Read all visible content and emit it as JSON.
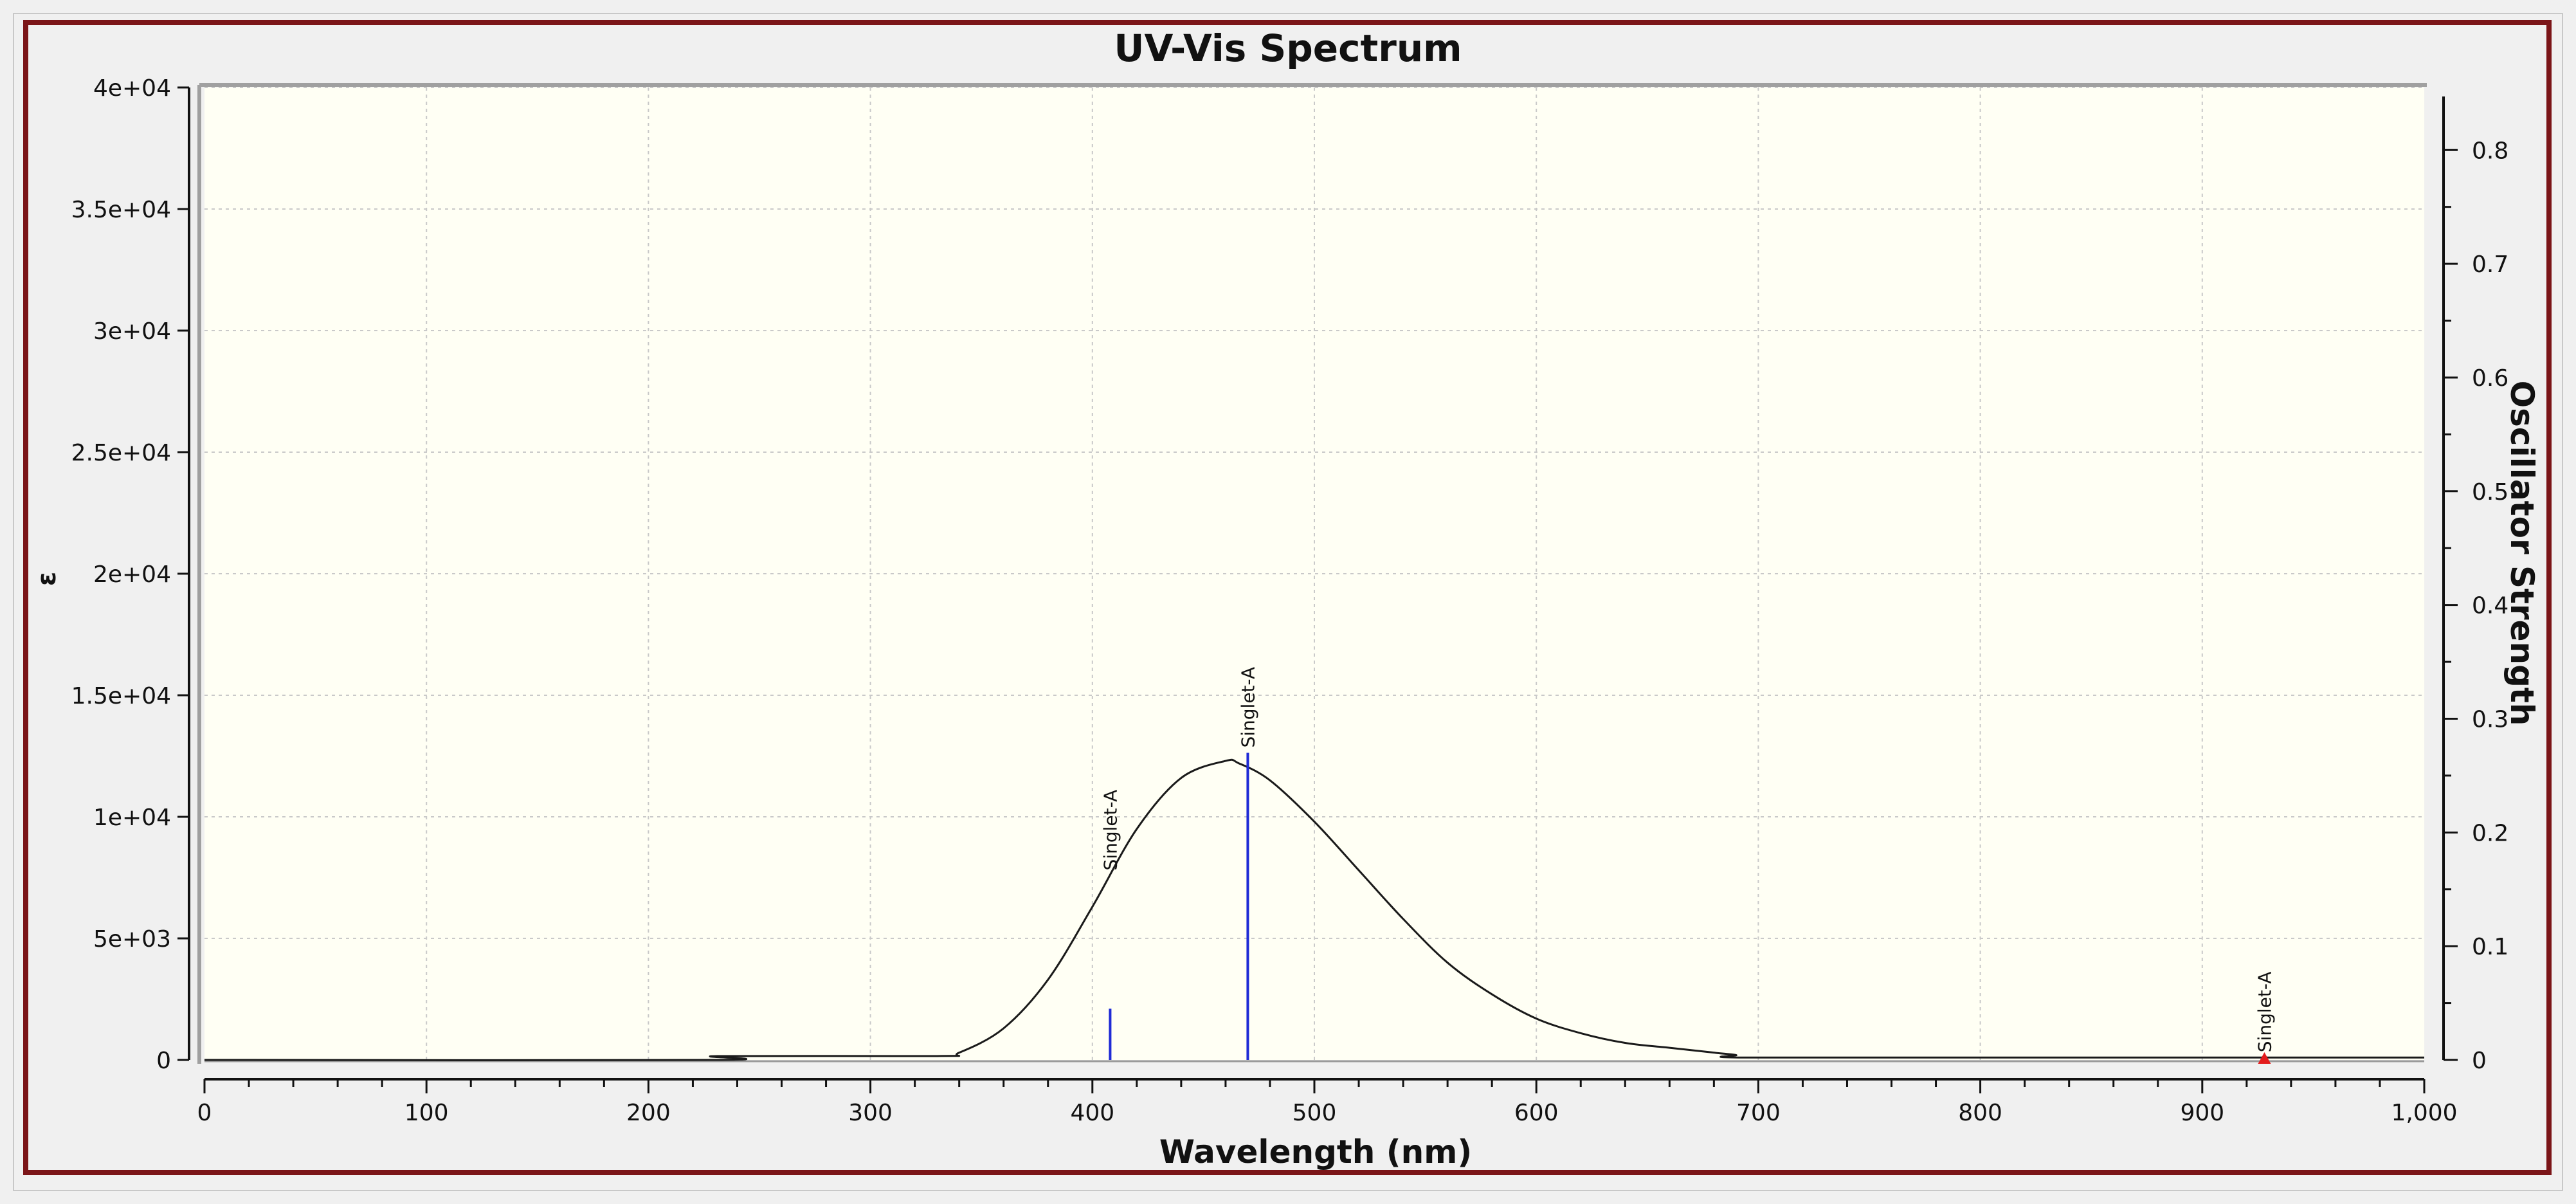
{
  "chart_data": {
    "type": "line",
    "title": "UV-Vis Spectrum",
    "xlabel": "Wavelength (nm)",
    "ylabel": "ε",
    "ylabel_right": "Oscillator Strength",
    "xlim": [
      0,
      1000
    ],
    "ylim": [
      0,
      40000
    ],
    "ylim_right": [
      0,
      0.855
    ],
    "grid": true,
    "x_ticks": [
      0,
      100,
      200,
      300,
      400,
      500,
      600,
      700,
      800,
      900,
      1000
    ],
    "x_tick_labels": [
      "0",
      "100",
      "200",
      "300",
      "400",
      "500",
      "600",
      "700",
      "800",
      "900",
      "1,000"
    ],
    "y_ticks": [
      0,
      5000,
      10000,
      15000,
      20000,
      25000,
      30000,
      35000,
      40000
    ],
    "y_tick_labels": [
      "0",
      "5e+03",
      "1e+04",
      "1.5e+04",
      "2e+04",
      "2.5e+04",
      "3e+04",
      "3.5e+04",
      "4e+04"
    ],
    "y_right_ticks": [
      0,
      0.1,
      0.2,
      0.3,
      0.4,
      0.5,
      0.6,
      0.7,
      0.8
    ],
    "y_right_tick_labels": [
      "0",
      "0.1",
      "0.2",
      "0.3",
      "0.4",
      "0.5",
      "0.6",
      "0.7",
      "0.8"
    ],
    "series": [
      {
        "x": [
          0,
          230,
          231,
          330,
          340,
          360,
          380,
          400,
          420,
          440,
          460,
          466,
          480,
          500,
          520,
          540,
          560,
          580,
          600,
          620,
          640,
          660,
          680,
          690,
          691,
          800,
          1000
        ],
        "y": [
          0,
          0,
          160,
          160,
          300,
          1300,
          3300,
          6300,
          9500,
          11600,
          12300,
          12200,
          11500,
          9800,
          7800,
          5800,
          4000,
          2700,
          1700,
          1100,
          700,
          500,
          300,
          200,
          100,
          100,
          100
        ]
      }
    ],
    "transitions": [
      {
        "x": 408,
        "strength": 0.045,
        "label": "Singlet-A"
      },
      {
        "x": 470,
        "strength": 0.27,
        "label": "Singlet-A"
      },
      {
        "x": 928,
        "strength": 0.0,
        "label": "Singlet-A"
      }
    ],
    "colors": {
      "curve": "#1a1a1a",
      "stick": "#1f2bd6",
      "marker": "#e31b1b",
      "plot_bg": "#fffff4",
      "grid": "#c9c9c9",
      "frame": "#7b1518"
    }
  }
}
